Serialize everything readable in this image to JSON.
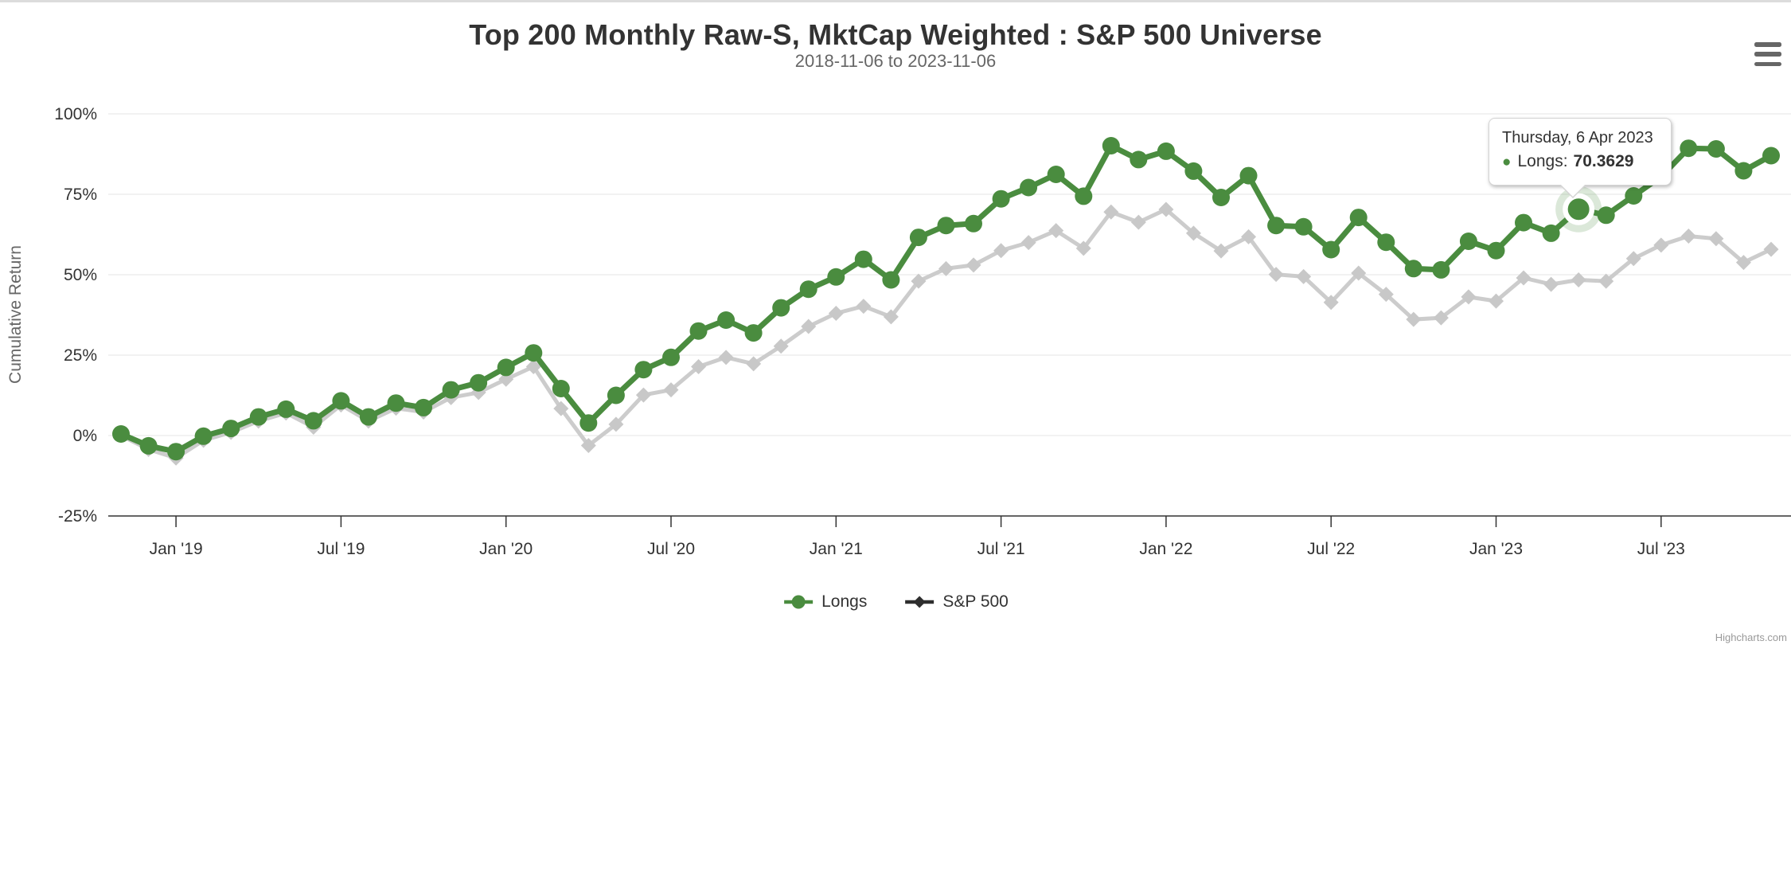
{
  "credits": "Highcharts.com",
  "icons": {
    "context_menu": "hamburger-icon",
    "tooltip_bullet": "circle-bullet"
  },
  "tooltip": {
    "date_label": "Thursday, 6 Apr 2023",
    "series_label": "Longs:",
    "value": "70.3629"
  },
  "chart_data": {
    "type": "line",
    "title": "Top 200 Monthly Raw-S, MktCap Weighted : S&P 500 Universe",
    "subtitle": "2018-11-06 to 2023-11-06",
    "x_start": "2018-11-06",
    "x_end": "2023-11-06",
    "x_interval": "monthly",
    "grid": true,
    "legend_position": "bottom-center",
    "ylim": [
      -25,
      100
    ],
    "y_axis": {
      "title": "Cumulative Return",
      "ticks": [
        {
          "value": 100,
          "label": "100%"
        },
        {
          "value": 75,
          "label": "75%"
        },
        {
          "value": 50,
          "label": "50%"
        },
        {
          "value": 25,
          "label": "25%"
        },
        {
          "value": 0,
          "label": "0%"
        },
        {
          "value": -25,
          "label": "-25%"
        }
      ]
    },
    "x_axis": {
      "ticks": [
        {
          "index": 2,
          "label": "Jan '19"
        },
        {
          "index": 8,
          "label": "Jul '19"
        },
        {
          "index": 14,
          "label": "Jan '20"
        },
        {
          "index": 20,
          "label": "Jul '20"
        },
        {
          "index": 26,
          "label": "Jan '21"
        },
        {
          "index": 32,
          "label": "Jul '21"
        },
        {
          "index": 38,
          "label": "Jan '22"
        },
        {
          "index": 44,
          "label": "Jul '22"
        },
        {
          "index": 50,
          "label": "Jan '23"
        },
        {
          "index": 56,
          "label": "Jul '23"
        }
      ]
    },
    "series": [
      {
        "name": "Longs",
        "marker": "circle",
        "line_color": "#4a8c3f",
        "marker_color": "#4a8c3f",
        "legend_color": "#4a8c3f",
        "values": [
          0.5,
          -3.2,
          -5.0,
          -0.2,
          2.2,
          5.8,
          8.2,
          4.6,
          10.8,
          5.8,
          10.1,
          8.7,
          14.2,
          16.4,
          21.2,
          25.7,
          14.6,
          3.9,
          12.5,
          20.5,
          24.3,
          32.5,
          35.9,
          31.9,
          39.7,
          45.5,
          49.3,
          54.8,
          48.4,
          61.6,
          65.3,
          65.9,
          73.6,
          77.1,
          81.2,
          74.4,
          90.1,
          85.8,
          88.4,
          82.2,
          74.0,
          80.8,
          65.3,
          64.9,
          57.8,
          67.8,
          60.1,
          51.9,
          51.5,
          60.4,
          57.5,
          66.2,
          62.9,
          70.3629,
          68.5,
          74.5,
          80.5,
          89.3,
          89.1,
          82.3,
          87.0
        ]
      },
      {
        "name": "S&P 500",
        "marker": "diamond",
        "line_color": "#cccccc",
        "marker_color": "#c8c8c8",
        "legend_color": "#2e2e2e",
        "values": [
          0.0,
          -4.3,
          -7.0,
          -1.5,
          1.0,
          4.5,
          7.0,
          2.6,
          9.5,
          4.5,
          8.5,
          7.3,
          11.8,
          13.4,
          17.5,
          21.4,
          8.4,
          -3.1,
          3.5,
          12.6,
          14.2,
          21.4,
          24.3,
          22.3,
          27.8,
          33.9,
          38.0,
          40.2,
          36.9,
          48.0,
          51.9,
          53.0,
          57.5,
          60.0,
          63.7,
          58.2,
          69.5,
          66.3,
          70.3,
          62.9,
          57.4,
          61.8,
          50.1,
          49.4,
          41.4,
          50.5,
          43.9,
          36.1,
          36.6,
          43.1,
          41.8,
          49.0,
          47.0,
          48.4,
          48.0,
          55.0,
          59.2,
          62.0,
          61.2,
          53.8,
          57.9
        ]
      }
    ],
    "highlight": {
      "series": "Longs",
      "index": 53,
      "value": "70.3629"
    }
  }
}
